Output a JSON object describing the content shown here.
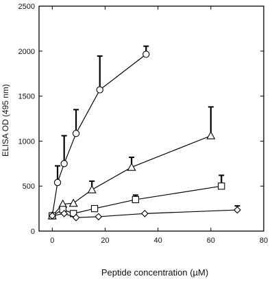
{
  "chart_data": {
    "type": "line",
    "xlabel": "Peptide concentration (µM)",
    "ylabel": "ELISA OD (495 nm)",
    "xlim": [
      -5,
      80
    ],
    "ylim": [
      0,
      2500
    ],
    "xticks": [
      0,
      20,
      40,
      60,
      80
    ],
    "yticks": [
      0,
      500,
      1000,
      1500,
      2000,
      2500
    ],
    "grid": false,
    "series": [
      {
        "marker": "circle",
        "x": [
          0,
          2,
          4.5,
          9,
          18,
          35.5
        ],
        "y": [
          170,
          540,
          750,
          1085,
          1570,
          1965
        ],
        "err": [
          0,
          185,
          310,
          265,
          375,
          90
        ]
      },
      {
        "marker": "triangle",
        "x": [
          0,
          4,
          8,
          15,
          30,
          60
        ],
        "y": [
          170,
          300,
          310,
          460,
          710,
          1060
        ],
        "err": [
          0,
          0,
          0,
          95,
          110,
          320
        ]
      },
      {
        "marker": "square",
        "x": [
          0,
          4,
          8,
          16,
          31.5,
          64
        ],
        "y": [
          170,
          240,
          195,
          250,
          350,
          500
        ],
        "err": [
          0,
          0,
          0,
          30,
          50,
          120
        ]
      },
      {
        "marker": "diamond",
        "x": [
          0,
          4.5,
          9,
          17.5,
          35,
          70
        ],
        "y": [
          170,
          195,
          150,
          160,
          195,
          235
        ],
        "err": [
          0,
          0,
          0,
          0,
          0,
          45
        ]
      }
    ]
  }
}
